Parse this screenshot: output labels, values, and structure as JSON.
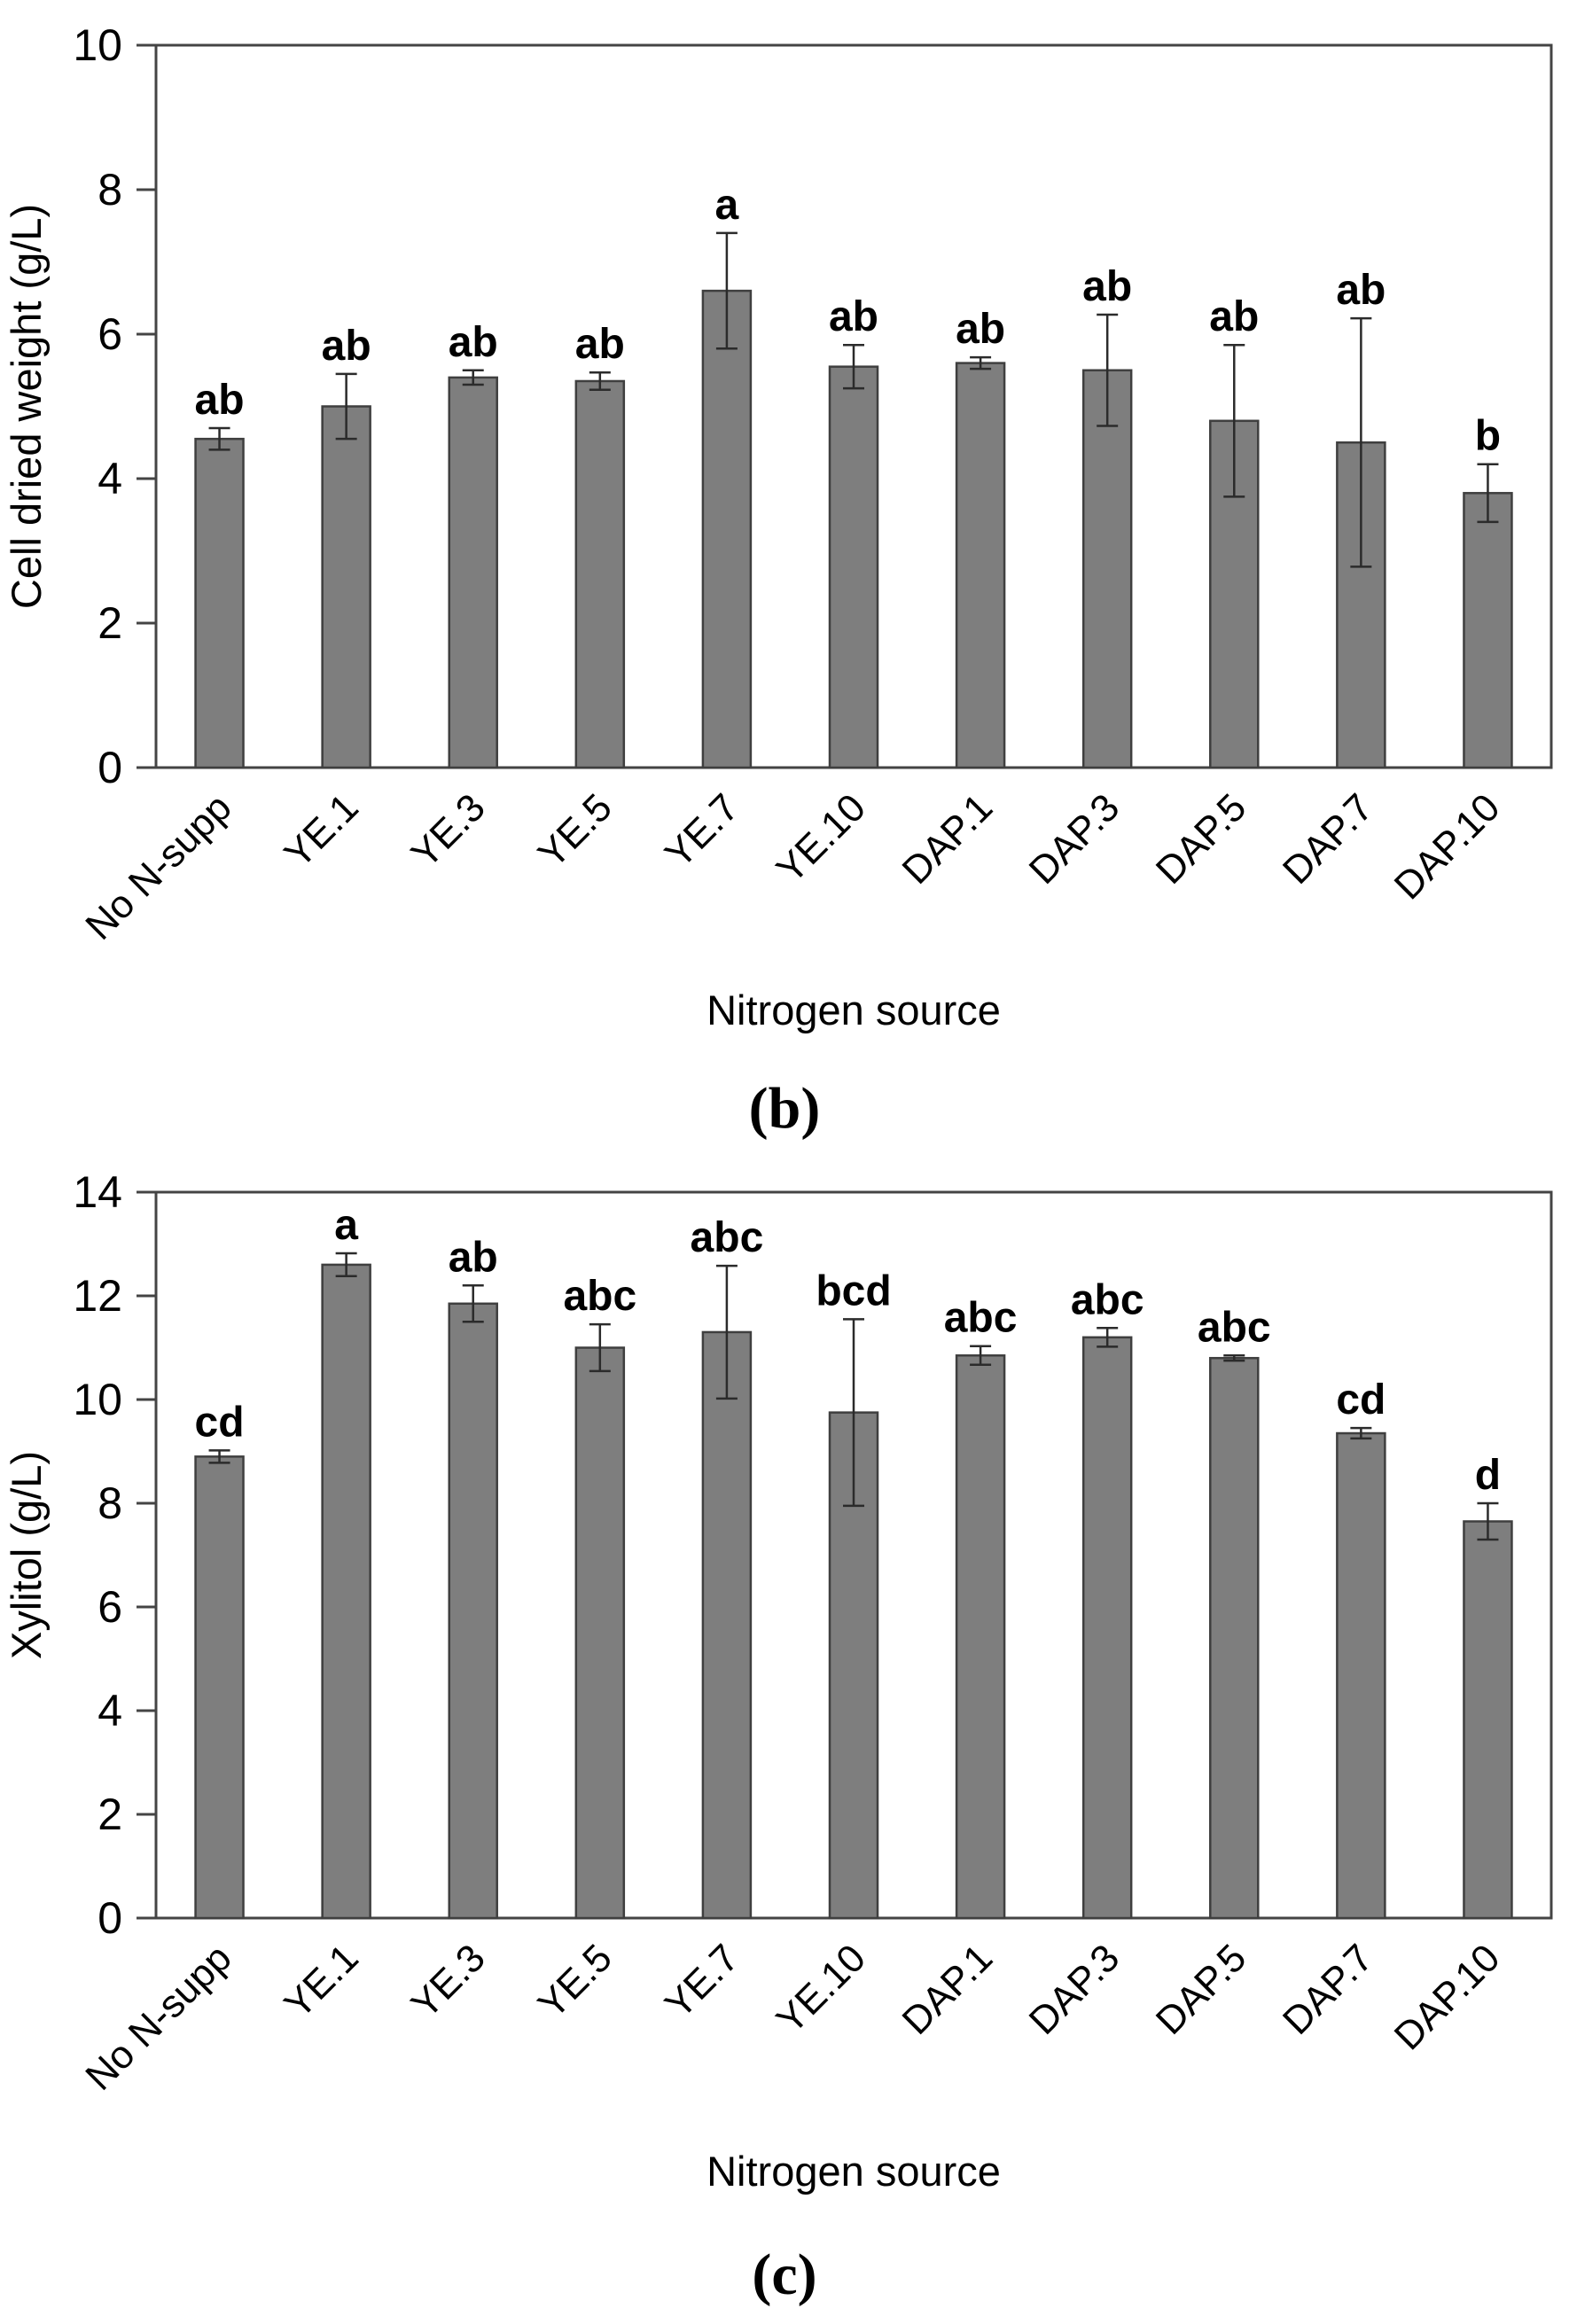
{
  "figure": {
    "background": "#ffffff"
  },
  "style": {
    "bar_fill": "#7e7e7e",
    "bar_stroke": "#3f3f3f",
    "axis_color": "#444444",
    "error_color": "#2b2b2b",
    "text_color": "#000000"
  },
  "chart_data": [
    {
      "type": "bar",
      "panel_label": "(b)",
      "title": "",
      "xlabel": "Nitrogen source",
      "ylabel": "Cell dried weight (g/L)",
      "ylim": [
        0,
        10
      ],
      "yticks": [
        0,
        2,
        4,
        6,
        8,
        10
      ],
      "grid": false,
      "legend": null,
      "categories": [
        "No N-supp",
        "YE.1",
        "YE.3",
        "YE.5",
        "YE.7",
        "YE.10",
        "DAP.1",
        "DAP.3",
        "DAP.5",
        "DAP.7",
        "DAP.10"
      ],
      "values": [
        4.55,
        5.0,
        5.4,
        5.35,
        6.6,
        5.55,
        5.6,
        5.5,
        4.8,
        4.5,
        3.8
      ],
      "errors": [
        0.15,
        0.45,
        0.1,
        0.12,
        0.8,
        0.3,
        0.08,
        0.77,
        1.05,
        1.72,
        0.4
      ],
      "sig_labels": [
        "ab",
        "ab",
        "ab",
        "ab",
        "a",
        "ab",
        "ab",
        "ab",
        "ab",
        "ab",
        "b"
      ]
    },
    {
      "type": "bar",
      "panel_label": "(c)",
      "title": "",
      "xlabel": "Nitrogen source",
      "ylabel": "Xylitol (g/L)",
      "ylim": [
        0,
        14
      ],
      "yticks": [
        0,
        2,
        4,
        6,
        8,
        10,
        12,
        14
      ],
      "grid": false,
      "legend": null,
      "categories": [
        "No N-supp",
        "YE.1",
        "YE.3",
        "YE.5",
        "YE.7",
        "YE.10",
        "DAP.1",
        "DAP.3",
        "DAP.5",
        "DAP.7",
        "DAP.10"
      ],
      "values": [
        8.9,
        12.6,
        11.85,
        11.0,
        11.3,
        9.75,
        10.85,
        11.2,
        10.8,
        9.35,
        7.65
      ],
      "errors": [
        0.12,
        0.22,
        0.35,
        0.45,
        1.28,
        1.8,
        0.18,
        0.18,
        0.05,
        0.1,
        0.35
      ],
      "sig_labels": [
        "cd",
        "a",
        "ab",
        "abc",
        "abc",
        "bcd",
        "abc",
        "abc",
        "abc",
        "cd",
        "d"
      ]
    }
  ]
}
